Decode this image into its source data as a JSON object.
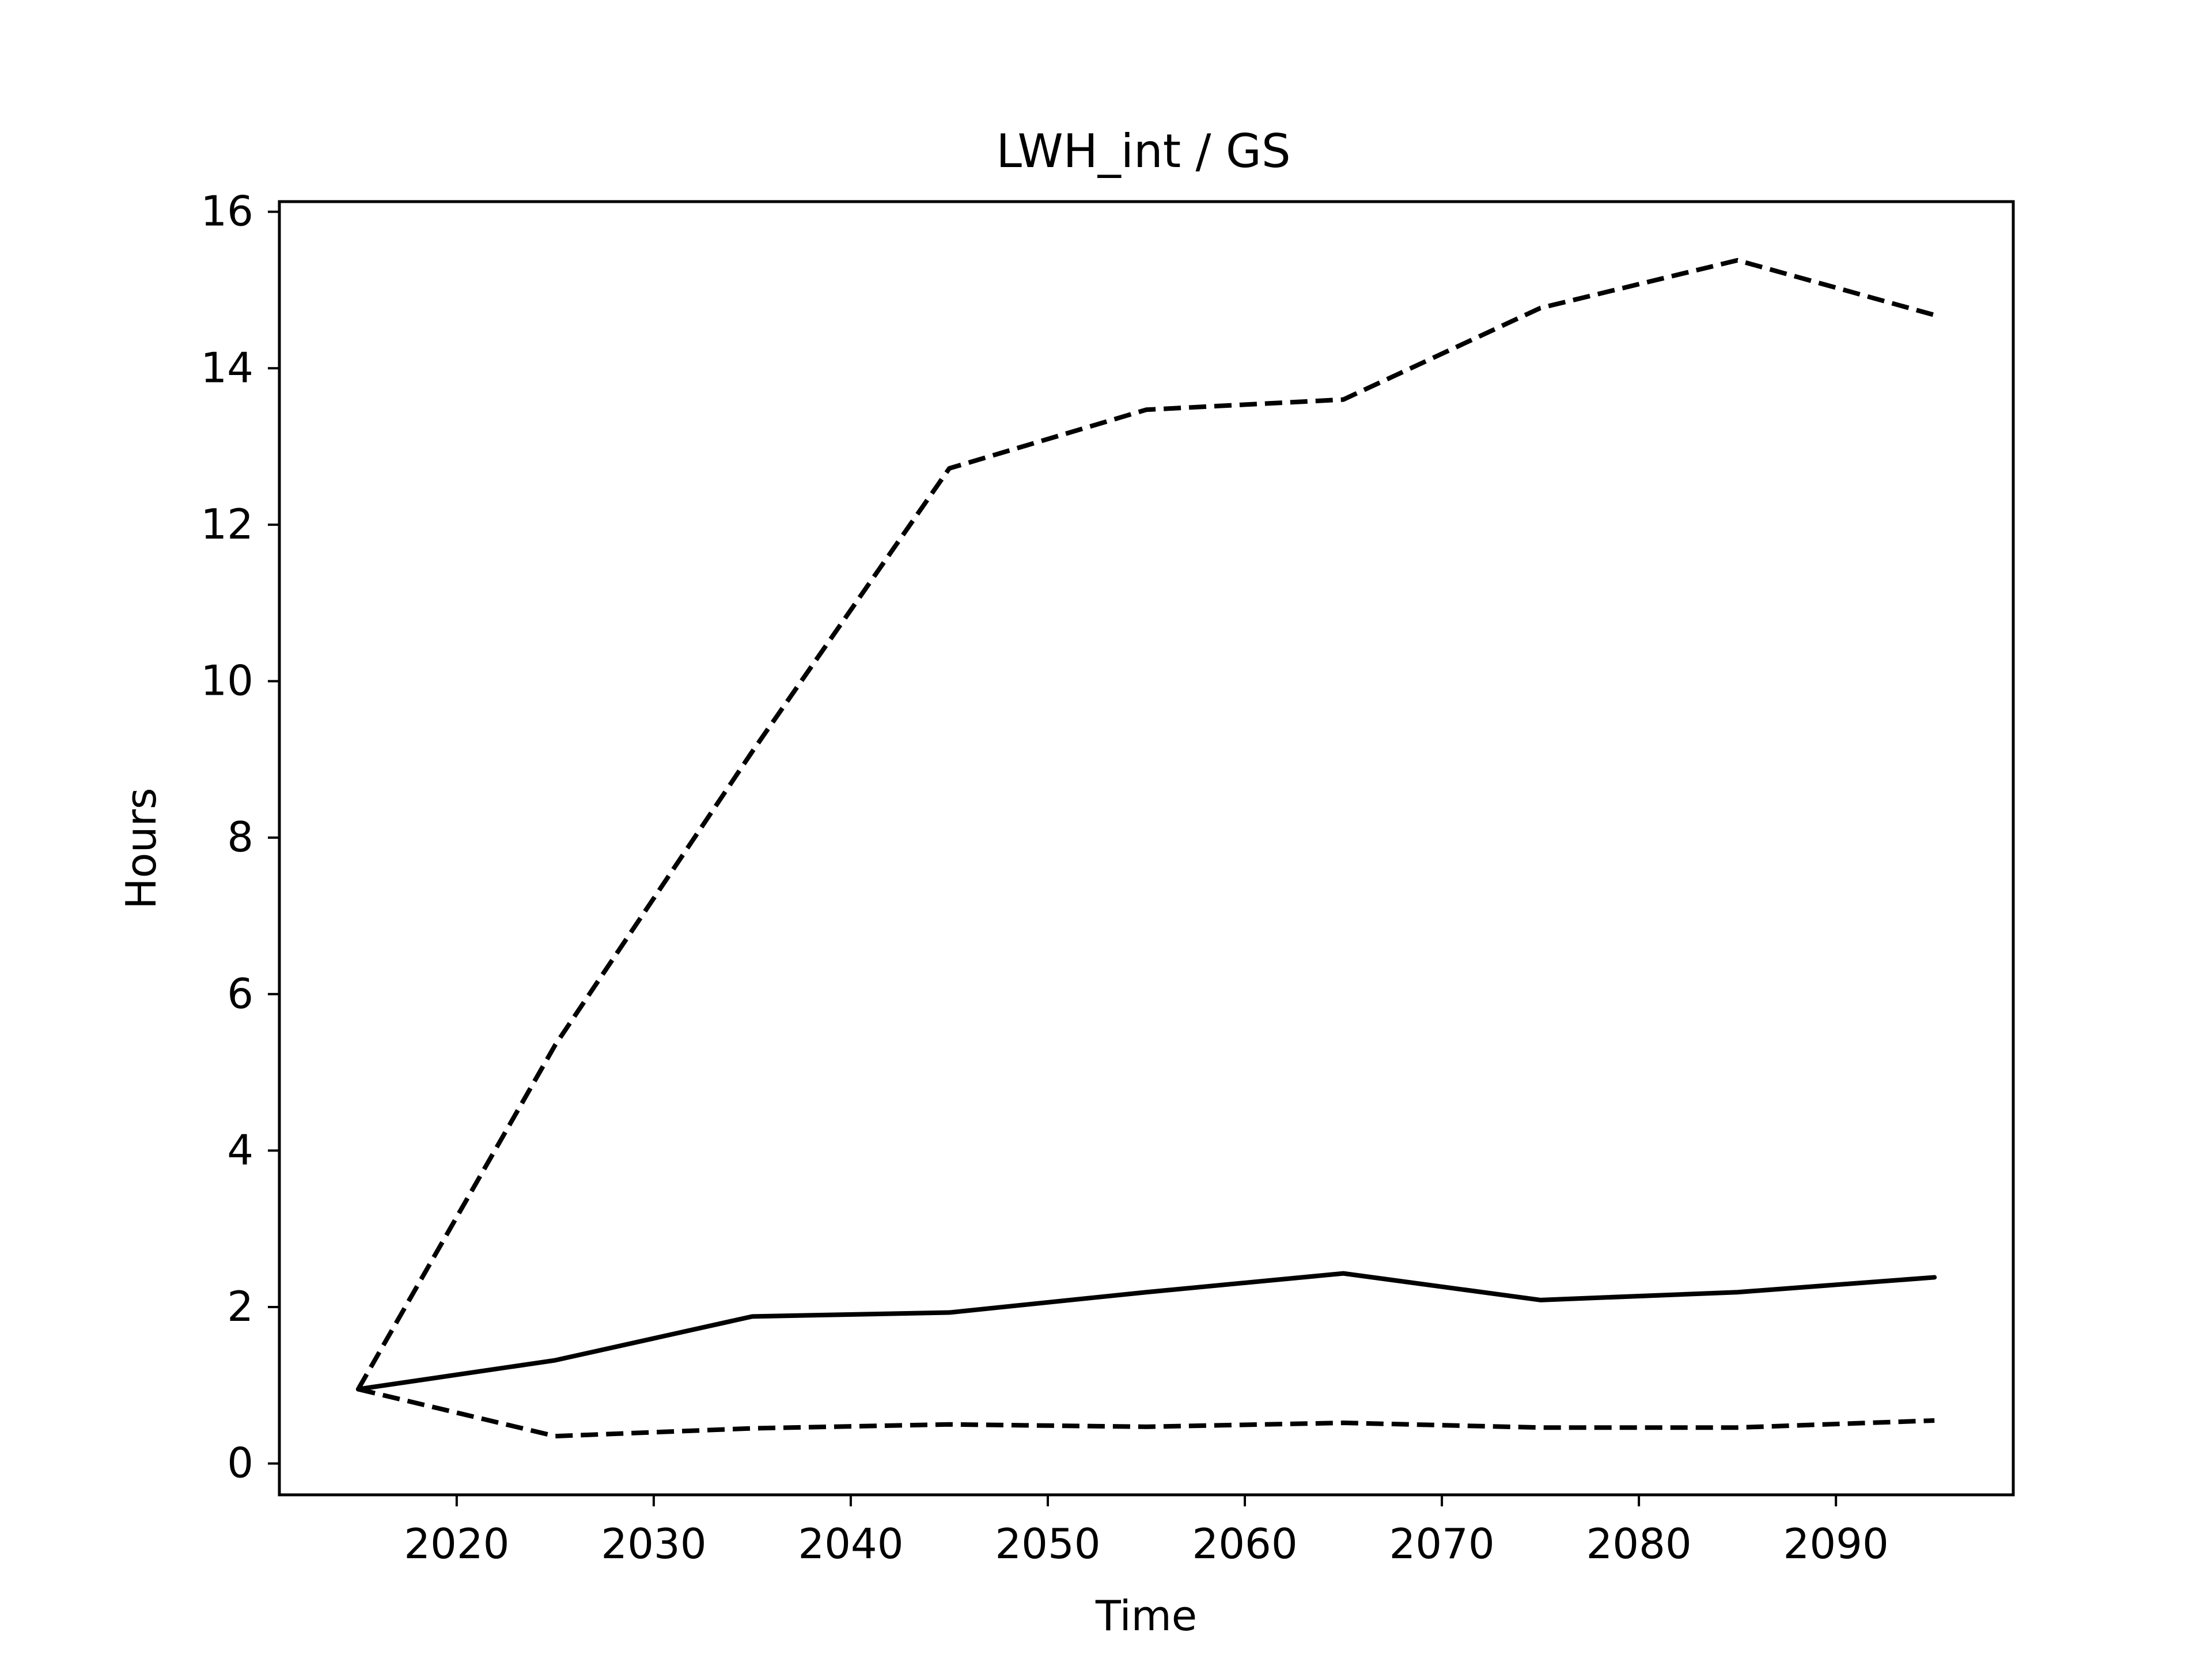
{
  "chart_data": {
    "type": "line",
    "title": "LWH_int / GS",
    "xlabel": "Time",
    "ylabel": "Hours",
    "x": [
      2015,
      2025,
      2035,
      2045,
      2055,
      2065,
      2075,
      2085,
      2095
    ],
    "series": [
      {
        "style": "solid",
        "values": [
          0.95,
          1.32,
          1.88,
          1.93,
          2.19,
          2.43,
          2.09,
          2.19,
          2.38
        ]
      },
      {
        "style": "dashed",
        "values": [
          0.95,
          5.35,
          9.1,
          12.72,
          13.47,
          13.6,
          14.77,
          15.38,
          14.68
        ]
      },
      {
        "style": "dashed",
        "values": [
          0.95,
          0.35,
          0.45,
          0.5,
          0.47,
          0.52,
          0.46,
          0.46,
          0.55
        ]
      }
    ],
    "xticks": [
      2020,
      2030,
      2040,
      2050,
      2060,
      2070,
      2080,
      2090
    ],
    "yticks": [
      0,
      2,
      4,
      6,
      8,
      10,
      12,
      14,
      16
    ],
    "xlim": [
      2011,
      2099
    ],
    "ylim": [
      -0.4,
      16.13
    ],
    "grid": false,
    "legend": "none",
    "colors": {
      "line": "#000000",
      "axes": "#000000",
      "background": "#ffffff"
    }
  }
}
